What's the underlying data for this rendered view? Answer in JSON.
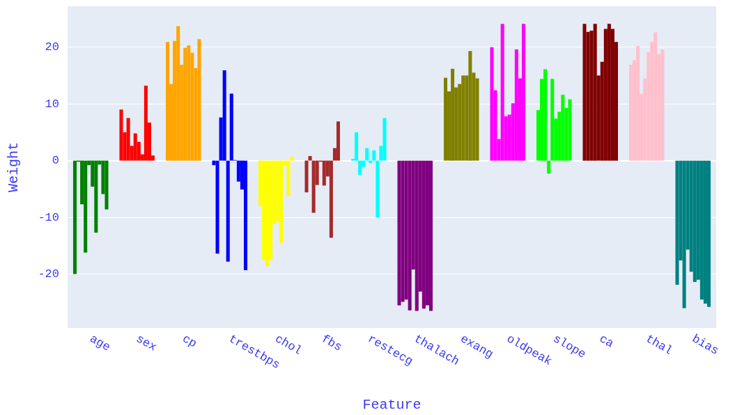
{
  "chart_data": {
    "type": "bar",
    "xlabel": "Feature",
    "ylabel": "Weight",
    "categories": [
      "age",
      "sex",
      "cp",
      "trestbps",
      "chol",
      "fbs",
      "restecg",
      "thalach",
      "exang",
      "oldpeak",
      "slope",
      "ca",
      "thal",
      "bias"
    ],
    "series": [
      {
        "colors": [
          "#008000",
          "#ff0000",
          "#ffa500",
          "#0000ff",
          "#ffff00",
          "#a52a2a",
          "#00ffff",
          "#800080",
          "#808000",
          "#ff00ff",
          "#00ff00",
          "#800000",
          "#ffc0cb",
          "#008080"
        ],
        "values": [
          -20.0,
          9.0,
          20.9,
          -0.8,
          -8.0,
          -5.6,
          0.3,
          -25.5,
          14.6,
          20.0,
          8.9,
          24.1,
          16.9,
          -21.9
        ]
      },
      {
        "colors": [
          "#008000",
          "#ff0000",
          "#ffa500",
          "#0000ff",
          "#ffff00",
          "#a52a2a",
          "#00ffff",
          "#800080",
          "#808000",
          "#ff00ff",
          "#00ff00",
          "#800000",
          "#ffc0cb",
          "#008080"
        ],
        "values": [
          -0.2,
          5.0,
          13.5,
          -16.4,
          -17.5,
          0.8,
          5.0,
          -24.9,
          12.2,
          12.4,
          14.4,
          22.7,
          17.7,
          -17.6
        ]
      },
      {
        "colors": [
          "#008000",
          "#ff0000",
          "#ffa500",
          "#0000ff",
          "#ffff00",
          "#a52a2a",
          "#00ffff",
          "#800080",
          "#808000",
          "#ff00ff",
          "#00ff00",
          "#800000",
          "#ffc0cb",
          "#008080"
        ],
        "values": [
          -7.7,
          7.5,
          21.1,
          7.6,
          -18.6,
          -9.2,
          -2.5,
          -24.5,
          16.2,
          3.8,
          16.1,
          22.9,
          20.2,
          -26.0
        ]
      },
      {
        "colors": [
          "#008000",
          "#ff0000",
          "#ffa500",
          "#0000ff",
          "#ffff00",
          "#a52a2a",
          "#00ffff",
          "#800080",
          "#808000",
          "#ff00ff",
          "#00ff00",
          "#800000",
          "#ffc0cb",
          "#008080"
        ],
        "values": [
          -16.2,
          2.6,
          23.7,
          15.9,
          -17.5,
          -4.3,
          -1.1,
          -26.4,
          12.9,
          24.1,
          -2.3,
          24.1,
          11.8,
          -15.7
        ]
      },
      {
        "colors": [
          "#008000",
          "#ff0000",
          "#ffa500",
          "#0000ff",
          "#ffff00",
          "#a52a2a",
          "#00ffff",
          "#800080",
          "#808000",
          "#ff00ff",
          "#00ff00",
          "#800000",
          "#ffc0cb",
          "#008080"
        ],
        "values": [
          -0.8,
          4.8,
          16.9,
          -17.8,
          -11.2,
          -0.2,
          2.2,
          -19.2,
          13.5,
          7.8,
          14.4,
          15.0,
          14.5,
          -19.6
        ]
      },
      {
        "colors": [
          "#008000",
          "#ff0000",
          "#ffa500",
          "#0000ff",
          "#ffff00",
          "#a52a2a",
          "#00ffff",
          "#800080",
          "#808000",
          "#ff00ff",
          "#00ff00",
          "#800000",
          "#ffc0cb",
          "#008080"
        ],
        "values": [
          -4.6,
          3.3,
          19.9,
          11.8,
          -10.8,
          -4.4,
          -0.4,
          -26.5,
          15.0,
          8.1,
          7.4,
          17.4,
          19.1,
          -21.4
        ]
      },
      {
        "colors": [
          "#008000",
          "#ff0000",
          "#ffa500",
          "#0000ff",
          "#ffff00",
          "#a52a2a",
          "#00ffff",
          "#800080",
          "#808000",
          "#ff00ff",
          "#00ff00",
          "#800000",
          "#ffc0cb",
          "#008080"
        ],
        "values": [
          -12.7,
          1.1,
          20.3,
          0.1,
          -14.5,
          -2.8,
          1.8,
          -23.1,
          15.0,
          10.1,
          8.6,
          23.2,
          20.9,
          -21.0
        ]
      },
      {
        "colors": [
          "#008000",
          "#ff0000",
          "#ffa500",
          "#0000ff",
          "#ffff00",
          "#a52a2a",
          "#00ffff",
          "#800080",
          "#808000",
          "#ff00ff",
          "#00ff00",
          "#800000",
          "#ffc0cb",
          "#008080"
        ],
        "values": [
          -0.7,
          13.2,
          19.0,
          -3.7,
          -0.9,
          -13.6,
          -10.0,
          -26.1,
          19.3,
          19.6,
          11.6,
          24.1,
          22.6,
          -24.5
        ]
      },
      {
        "colors": [
          "#008000",
          "#ff0000",
          "#ffa500",
          "#0000ff",
          "#ffff00",
          "#a52a2a",
          "#00ffff",
          "#800080",
          "#808000",
          "#ff00ff",
          "#00ff00",
          "#800000",
          "#ffc0cb",
          "#008080"
        ],
        "values": [
          -5.9,
          6.7,
          16.3,
          -5.1,
          -6.2,
          2.2,
          2.6,
          -25.5,
          15.5,
          14.5,
          9.3,
          23.2,
          18.8,
          -25.2
        ]
      },
      {
        "colors": [
          "#008000",
          "#ff0000",
          "#ffa500",
          "#0000ff",
          "#ffff00",
          "#a52a2a",
          "#00ffff",
          "#800080",
          "#808000",
          "#ff00ff",
          "#00ff00",
          "#800000",
          "#ffc0cb",
          "#008080"
        ],
        "values": [
          -8.6,
          0.9,
          21.4,
          -19.3,
          0.7,
          6.9,
          7.5,
          -26.5,
          14.5,
          24.1,
          10.8,
          20.9,
          19.6,
          -25.8
        ]
      }
    ],
    "ylim": [
      -29.5,
      27.2
    ],
    "yticks": [
      -20,
      -10,
      0,
      10,
      20
    ],
    "grid": "y"
  }
}
